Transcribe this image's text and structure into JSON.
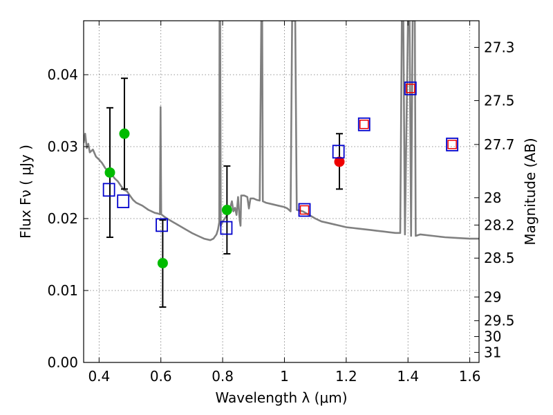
{
  "chart_data": {
    "type": "scatter",
    "xlabel": "Wavelength  λ (μm)",
    "ylabel": "Flux  Fν  ( μJy )",
    "y2label": "Magnitude (AB)",
    "xlim": [
      0.35,
      1.63
    ],
    "ylim": [
      0.0,
      0.0475
    ],
    "grid": true,
    "x_ticks": [
      0.4,
      0.6,
      0.8,
      1.0,
      1.2,
      1.4,
      1.6
    ],
    "x_tick_labels": [
      "0.4",
      "0.6",
      "0.8",
      "1",
      "1.2",
      "1.4",
      "1.6"
    ],
    "y_ticks": [
      0.0,
      0.01,
      0.02,
      0.03,
      0.04
    ],
    "y_tick_labels": [
      "0.00",
      "0.01",
      "0.02",
      "0.03",
      "0.04"
    ],
    "y2_ticks": [
      {
        "label": "27.3",
        "flux": 0.0438
      },
      {
        "label": "27.5",
        "flux": 0.0364
      },
      {
        "label": "27.7",
        "flux": 0.0303
      },
      {
        "label": "28",
        "flux": 0.0229
      },
      {
        "label": "28.2",
        "flux": 0.0191
      },
      {
        "label": "28.5",
        "flux": 0.0145
      },
      {
        "label": "29",
        "flux": 0.0091
      },
      {
        "label": "29.5",
        "flux": 0.0058
      },
      {
        "label": "30",
        "flux": 0.0036
      },
      {
        "label": "31",
        "flux": 0.0014
      }
    ],
    "series": [
      {
        "name": "observed (green)",
        "color": "#00bb00",
        "marker": "circle",
        "points": [
          {
            "x": 0.435,
            "y": 0.0264,
            "err_low": 0.0174,
            "err_high": 0.0354
          },
          {
            "x": 0.482,
            "y": 0.0318,
            "err_low": 0.0241,
            "err_high": 0.0395
          },
          {
            "x": 0.606,
            "y": 0.0138,
            "err_low": 0.0077,
            "err_high": 0.0198
          },
          {
            "x": 0.814,
            "y": 0.0212,
            "err_low": 0.0151,
            "err_high": 0.0273
          }
        ]
      },
      {
        "name": "observed (red)",
        "color": "#ee0000",
        "marker": "circle",
        "points": [
          {
            "x": 1.178,
            "y": 0.0279,
            "err_low": 0.0241,
            "err_high": 0.0318
          }
        ]
      },
      {
        "name": "model photometry (blue squares)",
        "color": "#0000cc",
        "marker": "open-square",
        "points": [
          {
            "x": 0.432,
            "y": 0.024
          },
          {
            "x": 0.478,
            "y": 0.0224
          },
          {
            "x": 0.603,
            "y": 0.0191
          },
          {
            "x": 0.812,
            "y": 0.0187
          },
          {
            "x": 1.065,
            "y": 0.0212
          },
          {
            "x": 1.175,
            "y": 0.0293
          },
          {
            "x": 1.258,
            "y": 0.0331
          },
          {
            "x": 1.408,
            "y": 0.0381
          },
          {
            "x": 1.543,
            "y": 0.0303
          }
        ]
      },
      {
        "name": "model photometry (red squares)",
        "color": "#ee0000",
        "marker": "open-square-small",
        "points": [
          {
            "x": 1.065,
            "y": 0.0212
          },
          {
            "x": 1.258,
            "y": 0.0331
          },
          {
            "x": 1.408,
            "y": 0.0381
          },
          {
            "x": 1.543,
            "y": 0.0303
          }
        ]
      },
      {
        "name": "model spectrum",
        "color": "#808080",
        "marker": "line",
        "points": [
          {
            "x": 0.35,
            "y": 0.0305
          },
          {
            "x": 0.355,
            "y": 0.0318
          },
          {
            "x": 0.36,
            "y": 0.0298
          },
          {
            "x": 0.365,
            "y": 0.0304
          },
          {
            "x": 0.37,
            "y": 0.0292
          },
          {
            "x": 0.38,
            "y": 0.0296
          },
          {
            "x": 0.39,
            "y": 0.0286
          },
          {
            "x": 0.4,
            "y": 0.0282
          },
          {
            "x": 0.41,
            "y": 0.0277
          },
          {
            "x": 0.42,
            "y": 0.027
          },
          {
            "x": 0.43,
            "y": 0.0266
          },
          {
            "x": 0.44,
            "y": 0.0262
          },
          {
            "x": 0.45,
            "y": 0.0256
          },
          {
            "x": 0.46,
            "y": 0.0252
          },
          {
            "x": 0.47,
            "y": 0.0246
          },
          {
            "x": 0.48,
            "y": 0.024
          },
          {
            "x": 0.49,
            "y": 0.0238
          },
          {
            "x": 0.5,
            "y": 0.0232
          },
          {
            "x": 0.51,
            "y": 0.0226
          },
          {
            "x": 0.52,
            "y": 0.0222
          },
          {
            "x": 0.53,
            "y": 0.022
          },
          {
            "x": 0.54,
            "y": 0.0218
          },
          {
            "x": 0.55,
            "y": 0.0215
          },
          {
            "x": 0.56,
            "y": 0.0212
          },
          {
            "x": 0.57,
            "y": 0.021
          },
          {
            "x": 0.58,
            "y": 0.0208
          },
          {
            "x": 0.59,
            "y": 0.0207
          },
          {
            "x": 0.597,
            "y": 0.0206
          },
          {
            "x": 0.599,
            "y": 0.0355
          },
          {
            "x": 0.601,
            "y": 0.0206
          },
          {
            "x": 0.61,
            "y": 0.0203
          },
          {
            "x": 0.62,
            "y": 0.02
          },
          {
            "x": 0.64,
            "y": 0.0195
          },
          {
            "x": 0.66,
            "y": 0.019
          },
          {
            "x": 0.68,
            "y": 0.0185
          },
          {
            "x": 0.7,
            "y": 0.018
          },
          {
            "x": 0.72,
            "y": 0.0176
          },
          {
            "x": 0.74,
            "y": 0.0172
          },
          {
            "x": 0.76,
            "y": 0.017
          },
          {
            "x": 0.77,
            "y": 0.0172
          },
          {
            "x": 0.78,
            "y": 0.0178
          },
          {
            "x": 0.785,
            "y": 0.0185
          },
          {
            "x": 0.789,
            "y": 0.0195
          },
          {
            "x": 0.79,
            "y": 0.0475
          },
          {
            "x": 0.792,
            "y": 0.0475
          },
          {
            "x": 0.794,
            "y": 0.019
          },
          {
            "x": 0.8,
            "y": 0.0196
          },
          {
            "x": 0.81,
            "y": 0.0202
          },
          {
            "x": 0.82,
            "y": 0.0208
          },
          {
            "x": 0.83,
            "y": 0.0224
          },
          {
            "x": 0.835,
            "y": 0.021
          },
          {
            "x": 0.84,
            "y": 0.0215
          },
          {
            "x": 0.845,
            "y": 0.0205
          },
          {
            "x": 0.85,
            "y": 0.023
          },
          {
            "x": 0.855,
            "y": 0.0198
          },
          {
            "x": 0.858,
            "y": 0.019
          },
          {
            "x": 0.86,
            "y": 0.0232
          },
          {
            "x": 0.87,
            "y": 0.0232
          },
          {
            "x": 0.88,
            "y": 0.023
          },
          {
            "x": 0.885,
            "y": 0.0214
          },
          {
            "x": 0.89,
            "y": 0.0228
          },
          {
            "x": 0.9,
            "y": 0.0228
          },
          {
            "x": 0.91,
            "y": 0.0226
          },
          {
            "x": 0.92,
            "y": 0.0225
          },
          {
            "x": 0.925,
            "y": 0.0475
          },
          {
            "x": 0.928,
            "y": 0.0475
          },
          {
            "x": 0.93,
            "y": 0.0224
          },
          {
            "x": 0.94,
            "y": 0.0222
          },
          {
            "x": 0.96,
            "y": 0.022
          },
          {
            "x": 0.98,
            "y": 0.0218
          },
          {
            "x": 1.0,
            "y": 0.0216
          },
          {
            "x": 1.01,
            "y": 0.0214
          },
          {
            "x": 1.02,
            "y": 0.021
          },
          {
            "x": 1.025,
            "y": 0.0475
          },
          {
            "x": 1.035,
            "y": 0.0475
          },
          {
            "x": 1.04,
            "y": 0.0212
          },
          {
            "x": 1.06,
            "y": 0.021
          },
          {
            "x": 1.08,
            "y": 0.0205
          },
          {
            "x": 1.1,
            "y": 0.02
          },
          {
            "x": 1.12,
            "y": 0.0196
          },
          {
            "x": 1.14,
            "y": 0.0194
          },
          {
            "x": 1.16,
            "y": 0.0192
          },
          {
            "x": 1.18,
            "y": 0.019
          },
          {
            "x": 1.2,
            "y": 0.0188
          },
          {
            "x": 1.22,
            "y": 0.0187
          },
          {
            "x": 1.24,
            "y": 0.0186
          },
          {
            "x": 1.26,
            "y": 0.0185
          },
          {
            "x": 1.28,
            "y": 0.0184
          },
          {
            "x": 1.3,
            "y": 0.0183
          },
          {
            "x": 1.32,
            "y": 0.0182
          },
          {
            "x": 1.34,
            "y": 0.0181
          },
          {
            "x": 1.36,
            "y": 0.018
          },
          {
            "x": 1.375,
            "y": 0.018
          },
          {
            "x": 1.38,
            "y": 0.0475
          },
          {
            "x": 1.385,
            "y": 0.0475
          },
          {
            "x": 1.39,
            "y": 0.0178
          },
          {
            "x": 1.4,
            "y": 0.0475
          },
          {
            "x": 1.405,
            "y": 0.0475
          },
          {
            "x": 1.41,
            "y": 0.0176
          },
          {
            "x": 1.415,
            "y": 0.0475
          },
          {
            "x": 1.422,
            "y": 0.0475
          },
          {
            "x": 1.425,
            "y": 0.0176
          },
          {
            "x": 1.44,
            "y": 0.0178
          },
          {
            "x": 1.48,
            "y": 0.0176
          },
          {
            "x": 1.52,
            "y": 0.0174
          },
          {
            "x": 1.56,
            "y": 0.0173
          },
          {
            "x": 1.6,
            "y": 0.0172
          },
          {
            "x": 1.63,
            "y": 0.0172
          }
        ]
      }
    ]
  }
}
